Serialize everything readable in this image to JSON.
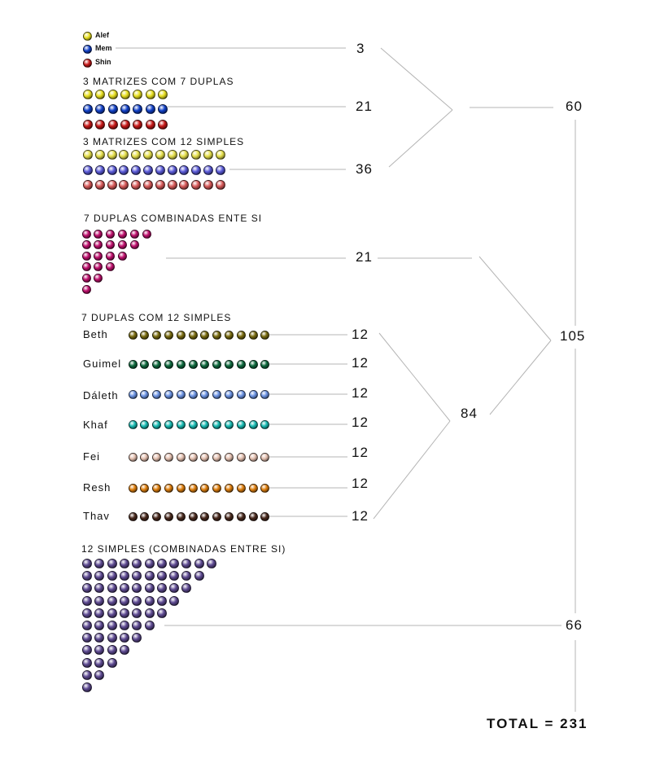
{
  "legend": [
    {
      "label": "Alef",
      "color": "#e8e020"
    },
    {
      "label": "Mem",
      "color": "#1040c8"
    },
    {
      "label": "Shin",
      "color": "#c81818"
    }
  ],
  "legend_count": "3",
  "sections": {
    "duplas_header": "3 MATRIZES COM 7 DUPLAS",
    "duplas_count": "21",
    "simples_header": "3 MATRIZES COM 12 SIMPLES",
    "simples_count": "36",
    "combinadas_header": "7 DUPLAS COMBINADAS ENTE SI",
    "combinadas_count": "21",
    "duplas_simples_header": "7 DUPLAS COM 12 SIMPLES",
    "simples_combinadas_header": "12 SIMPLES (COMBINADAS ENTRE SI)"
  },
  "matrix_colors": {
    "duplas": [
      "#e8e020",
      "#1040c8",
      "#c81818"
    ],
    "simples": [
      "#e6e04c",
      "#5a5ad8",
      "#d85a5a"
    ]
  },
  "combinadas_color": "#c0106e",
  "simples_combinadas_color": "#5e4a92",
  "letters": [
    {
      "name": "Beth",
      "count": "12",
      "color": "#7a6c10"
    },
    {
      "name": "Guimel",
      "count": "12",
      "color": "#0e6a3e"
    },
    {
      "name": "Dáleth",
      "count": "12",
      "color": "#6c94e4"
    },
    {
      "name": "Khaf",
      "count": "12",
      "color": "#18bcb4"
    },
    {
      "name": "Fei",
      "count": "12",
      "color": "#e4c0b0"
    },
    {
      "name": "Resh",
      "count": "12",
      "color": "#e0800e"
    },
    {
      "name": "Thav",
      "count": "12",
      "color": "#4a2a1e"
    }
  ],
  "subtotals": {
    "group_a": "60",
    "group_b": "84",
    "group_c": "105",
    "group_d": "66"
  },
  "total_label": "TOTAL = 231"
}
